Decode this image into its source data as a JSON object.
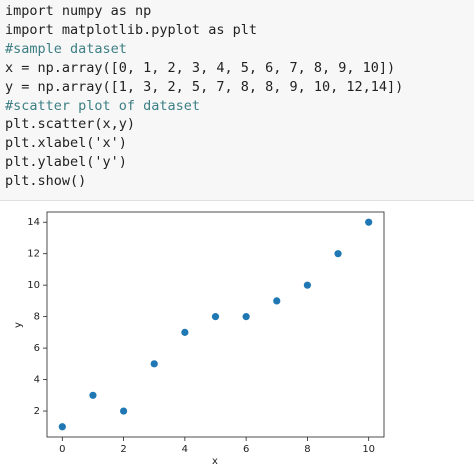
{
  "code": {
    "lines": [
      "import numpy as np",
      "import matplotlib.pyplot as plt",
      "#sample dataset",
      "x = np.array([0, 1, 2, 3, 4, 5, 6, 7, 8, 9, 10])",
      "y = np.array([1, 3, 2, 5, 7, 8, 8, 9, 10, 12,14])",
      "#scatter plot of dataset",
      "plt.scatter(x,y)",
      "plt.xlabel('x')",
      "plt.ylabel('y')",
      "plt.show()"
    ]
  },
  "chart_data": {
    "type": "scatter",
    "x_label": "x",
    "y_label": "y",
    "color": "#1f77b4",
    "series": [
      {
        "x": [
          0,
          1,
          2,
          3,
          4,
          5,
          6,
          7,
          8,
          9,
          10
        ],
        "values": [
          1,
          3,
          2,
          5,
          7,
          8,
          8,
          9,
          10,
          12,
          14
        ]
      }
    ],
    "xlim": [
      -0.5,
      10.5
    ],
    "ylim": [
      0.35,
      14.65
    ],
    "xticks": [
      0,
      2,
      4,
      6,
      8,
      10
    ],
    "yticks": [
      2,
      4,
      6,
      8,
      10,
      12,
      14
    ]
  }
}
